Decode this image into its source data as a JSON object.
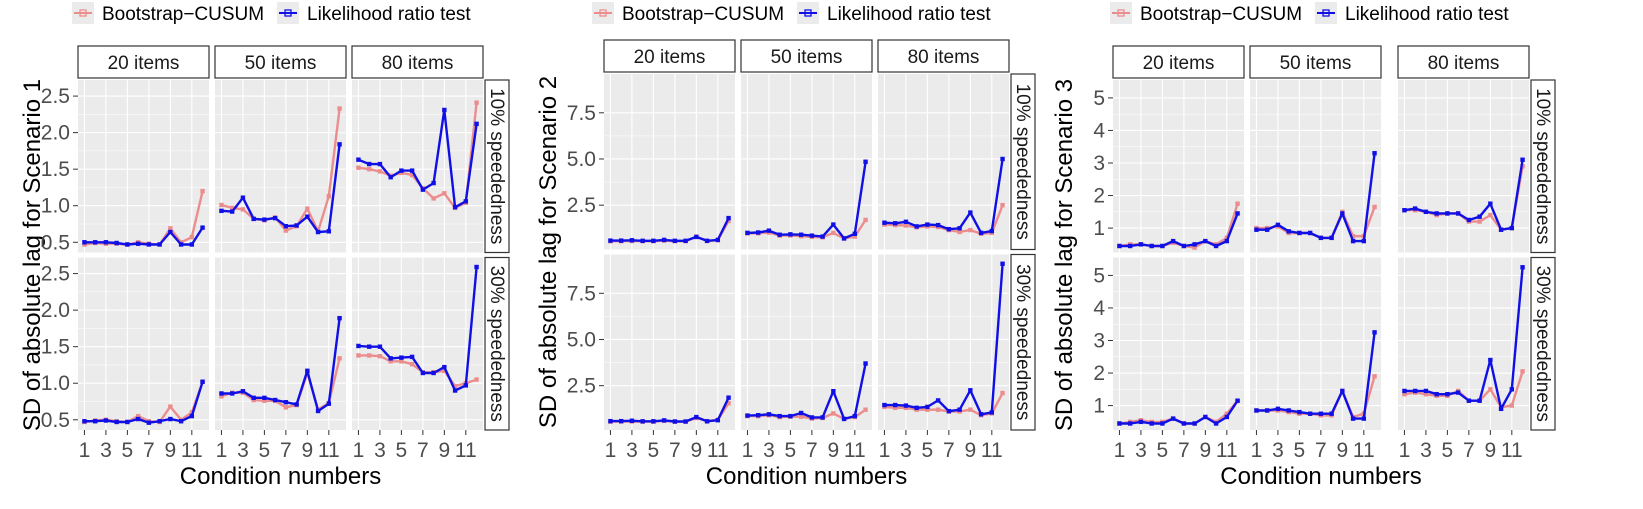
{
  "colors": {
    "bootstrap": "#ec8d8d",
    "lrt": "#1010e6"
  },
  "legend": {
    "bootstrap_label": "Bootstrap−CUSUM",
    "lrt_label": "Likelihood ratio test"
  },
  "column_strips": [
    "20 items",
    "50 items",
    "80 items"
  ],
  "row_strips": [
    "10% speededness",
    "30% speededness"
  ],
  "x_ticks": [
    "1",
    "3",
    "5",
    "7",
    "9",
    "11"
  ],
  "xlabel": "Condition numbers",
  "chart_data": [
    {
      "type": "line",
      "ylabel": "SD of absolute lag for Scenario 1",
      "ylim": [
        0.36,
        2.72
      ],
      "yticks": [
        0.5,
        1.0,
        1.5,
        2.0,
        2.5
      ],
      "ytick_labels": [
        "0.5",
        "1.0",
        "1.5",
        "2.0",
        "2.5"
      ],
      "x": [
        1,
        2,
        3,
        4,
        5,
        6,
        7,
        8,
        9,
        10,
        11,
        12
      ],
      "panels": [
        {
          "items": "20 items",
          "speededness": "10% speededness",
          "bootstrap": [
            0.47,
            0.49,
            0.48,
            0.48,
            0.47,
            0.5,
            0.48,
            0.47,
            0.69,
            0.5,
            0.57,
            1.2
          ],
          "lrt": [
            0.5,
            0.5,
            0.5,
            0.49,
            0.47,
            0.48,
            0.47,
            0.47,
            0.64,
            0.47,
            0.47,
            0.7
          ]
        },
        {
          "items": "50 items",
          "speededness": "10% speededness",
          "bootstrap": [
            1.01,
            0.97,
            0.95,
            0.82,
            0.8,
            0.84,
            0.66,
            0.72,
            0.96,
            0.65,
            1.13,
            2.33
          ],
          "lrt": [
            0.93,
            0.92,
            1.11,
            0.82,
            0.81,
            0.83,
            0.72,
            0.73,
            0.85,
            0.64,
            0.65,
            1.84
          ]
        },
        {
          "items": "80 items",
          "speededness": "10% speededness",
          "bootstrap": [
            1.52,
            1.5,
            1.47,
            1.41,
            1.45,
            1.42,
            1.24,
            1.1,
            1.17,
            0.97,
            1.04,
            2.41
          ],
          "lrt": [
            1.63,
            1.57,
            1.57,
            1.39,
            1.48,
            1.48,
            1.22,
            1.31,
            2.31,
            0.98,
            1.06,
            2.12
          ]
        },
        {
          "items": "20 items",
          "speededness": "30% speededness",
          "bootstrap": [
            0.47,
            0.49,
            0.5,
            0.48,
            0.47,
            0.55,
            0.48,
            0.47,
            0.68,
            0.5,
            0.6,
            1.02
          ],
          "lrt": [
            0.48,
            0.48,
            0.49,
            0.47,
            0.47,
            0.51,
            0.46,
            0.48,
            0.51,
            0.48,
            0.55,
            1.02
          ]
        },
        {
          "items": "50 items",
          "speededness": "30% speededness",
          "bootstrap": [
            0.82,
            0.87,
            0.87,
            0.77,
            0.76,
            0.76,
            0.67,
            0.7,
            1.14,
            0.64,
            0.73,
            1.34
          ],
          "lrt": [
            0.86,
            0.86,
            0.89,
            0.8,
            0.8,
            0.77,
            0.74,
            0.71,
            1.17,
            0.62,
            0.72,
            1.89
          ]
        },
        {
          "items": "80 items",
          "speededness": "30% speededness",
          "bootstrap": [
            1.38,
            1.38,
            1.37,
            1.3,
            1.3,
            1.26,
            1.15,
            1.15,
            1.17,
            0.96,
            1.0,
            1.05
          ],
          "lrt": [
            1.51,
            1.5,
            1.5,
            1.34,
            1.35,
            1.36,
            1.14,
            1.14,
            1.22,
            0.9,
            0.97,
            2.59
          ]
        }
      ]
    },
    {
      "type": "line",
      "ylabel": "SD of absolute lag for Scenario 2",
      "ylim": [
        0.1,
        9.6
      ],
      "yticks": [
        2.5,
        5.0,
        7.5
      ],
      "ytick_labels": [
        "2.5",
        "5.0",
        "7.5"
      ],
      "x": [
        1,
        2,
        3,
        4,
        5,
        6,
        7,
        8,
        9,
        10,
        11,
        12
      ],
      "panels": [
        {
          "items": "20 items",
          "speededness": "10% speededness",
          "bootstrap": [
            0.55,
            0.55,
            0.56,
            0.55,
            0.55,
            0.58,
            0.55,
            0.55,
            0.8,
            0.56,
            0.6,
            1.65
          ],
          "lrt": [
            0.58,
            0.58,
            0.6,
            0.57,
            0.57,
            0.62,
            0.57,
            0.57,
            0.78,
            0.57,
            0.62,
            1.8
          ]
        },
        {
          "items": "50 items",
          "speededness": "10% speededness",
          "bootstrap": [
            0.97,
            0.98,
            1.02,
            0.85,
            0.86,
            0.82,
            0.78,
            0.76,
            1.0,
            0.7,
            0.8,
            1.7
          ],
          "lrt": [
            1.0,
            1.02,
            1.12,
            0.9,
            0.92,
            0.9,
            0.85,
            0.8,
            1.45,
            0.7,
            0.95,
            4.85
          ]
        },
        {
          "items": "80 items",
          "speededness": "10% speededness",
          "bootstrap": [
            1.45,
            1.42,
            1.4,
            1.3,
            1.35,
            1.32,
            1.15,
            1.05,
            1.15,
            0.95,
            1.0,
            2.5
          ],
          "lrt": [
            1.55,
            1.52,
            1.6,
            1.35,
            1.45,
            1.42,
            1.2,
            1.25,
            2.1,
            1.0,
            1.1,
            5.0
          ]
        },
        {
          "items": "20 items",
          "speededness": "30% speededness",
          "bootstrap": [
            0.55,
            0.56,
            0.56,
            0.55,
            0.55,
            0.6,
            0.55,
            0.55,
            0.75,
            0.58,
            0.65,
            1.55
          ],
          "lrt": [
            0.58,
            0.58,
            0.6,
            0.57,
            0.57,
            0.62,
            0.56,
            0.56,
            0.8,
            0.57,
            0.63,
            1.85
          ]
        },
        {
          "items": "50 items",
          "speededness": "30% speededness",
          "bootstrap": [
            0.85,
            0.85,
            0.9,
            0.8,
            0.82,
            0.82,
            0.72,
            0.75,
            1.0,
            0.7,
            0.8,
            1.2
          ],
          "lrt": [
            0.88,
            0.9,
            0.95,
            0.85,
            0.85,
            1.02,
            0.78,
            0.78,
            2.2,
            0.7,
            0.85,
            3.7
          ]
        },
        {
          "items": "80 items",
          "speededness": "30% speededness",
          "bootstrap": [
            1.35,
            1.3,
            1.3,
            1.2,
            1.2,
            1.2,
            1.1,
            1.1,
            1.2,
            0.9,
            1.0,
            2.1
          ],
          "lrt": [
            1.45,
            1.45,
            1.42,
            1.3,
            1.35,
            1.7,
            1.12,
            1.2,
            2.25,
            0.95,
            1.05,
            9.1
          ]
        }
      ]
    },
    {
      "type": "line",
      "ylabel": "SD of absolute lag for Scenario 3",
      "ylim": [
        0.25,
        5.55
      ],
      "yticks": [
        1,
        2,
        3,
        4,
        5
      ],
      "ytick_labels": [
        "1",
        "2",
        "3",
        "4",
        "5"
      ],
      "x": [
        1,
        2,
        3,
        4,
        5,
        6,
        7,
        8,
        9,
        10,
        11,
        12
      ],
      "panels": [
        {
          "items": "20 items",
          "speededness": "10% speededness",
          "bootstrap": [
            0.45,
            0.5,
            0.5,
            0.45,
            0.45,
            0.55,
            0.45,
            0.4,
            0.6,
            0.5,
            0.7,
            1.75
          ],
          "lrt": [
            0.45,
            0.45,
            0.5,
            0.45,
            0.45,
            0.6,
            0.45,
            0.5,
            0.6,
            0.45,
            0.6,
            1.45
          ]
        },
        {
          "items": "50 items",
          "speededness": "10% speededness",
          "bootstrap": [
            1.0,
            1.0,
            1.05,
            0.85,
            0.85,
            0.85,
            0.7,
            0.7,
            1.5,
            0.75,
            0.75,
            1.65
          ],
          "lrt": [
            0.95,
            0.95,
            1.1,
            0.9,
            0.85,
            0.85,
            0.7,
            0.7,
            1.45,
            0.6,
            0.6,
            3.3
          ]
        },
        {
          "items": "80 items",
          "speededness": "10% speededness",
          "bootstrap": [
            1.55,
            1.55,
            1.5,
            1.4,
            1.45,
            1.45,
            1.2,
            1.2,
            1.4,
            0.95,
            1.0,
            2.9
          ],
          "lrt": [
            1.55,
            1.6,
            1.5,
            1.45,
            1.45,
            1.45,
            1.25,
            1.35,
            1.75,
            0.95,
            1.0,
            3.1
          ]
        },
        {
          "items": "20 items",
          "speededness": "30% speededness",
          "bootstrap": [
            0.45,
            0.5,
            0.55,
            0.5,
            0.5,
            0.6,
            0.45,
            0.45,
            0.65,
            0.5,
            0.75,
            1.15
          ],
          "lrt": [
            0.45,
            0.45,
            0.5,
            0.45,
            0.45,
            0.6,
            0.45,
            0.45,
            0.65,
            0.45,
            0.65,
            1.15
          ]
        },
        {
          "items": "50 items",
          "speededness": "30% speededness",
          "bootstrap": [
            0.85,
            0.85,
            0.85,
            0.8,
            0.75,
            0.75,
            0.7,
            0.7,
            1.45,
            0.65,
            0.75,
            1.9
          ],
          "lrt": [
            0.85,
            0.85,
            0.9,
            0.85,
            0.8,
            0.75,
            0.75,
            0.75,
            1.45,
            0.6,
            0.6,
            3.25
          ]
        },
        {
          "items": "80 items",
          "speededness": "30% speededness",
          "bootstrap": [
            1.35,
            1.4,
            1.35,
            1.3,
            1.3,
            1.45,
            1.15,
            1.15,
            1.5,
            0.95,
            1.0,
            2.05
          ],
          "lrt": [
            1.45,
            1.45,
            1.45,
            1.35,
            1.35,
            1.4,
            1.15,
            1.15,
            2.4,
            0.9,
            1.5,
            5.25
          ]
        }
      ]
    }
  ]
}
